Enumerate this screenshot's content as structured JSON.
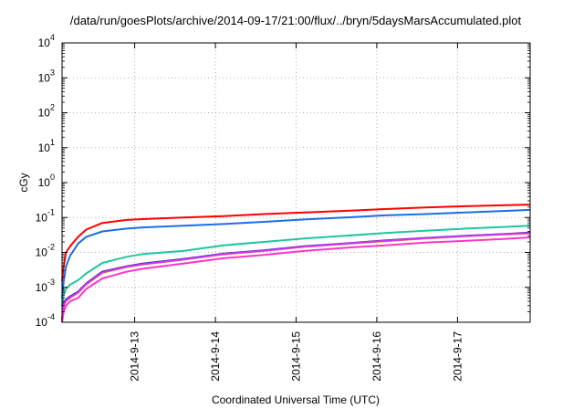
{
  "chart_data": {
    "type": "line",
    "title": "/data/run/goesPlots/archive/2014-09-17/21:00/flux/../bryn/5daysMarsAccumulated.plot",
    "xlabel": "Coordinated Universal Time (UTC)",
    "ylabel": "cGy",
    "yscale": "log",
    "ylim": [
      0.0001,
      10000
    ],
    "xlim": [
      0,
      5.8
    ],
    "grid": true,
    "x_ticks": [
      {
        "x": 0.9,
        "label": "2014-9-13"
      },
      {
        "x": 1.9,
        "label": "2014-9-14"
      },
      {
        "x": 2.9,
        "label": "2014-9-15"
      },
      {
        "x": 3.9,
        "label": "2014-9-16"
      },
      {
        "x": 4.9,
        "label": "2014-9-17"
      }
    ],
    "y_ticks": [
      {
        "v": 0.0001,
        "base": "10",
        "exp": "-4"
      },
      {
        "v": 0.001,
        "base": "10",
        "exp": "-3"
      },
      {
        "v": 0.01,
        "base": "10",
        "exp": "-2"
      },
      {
        "v": 0.1,
        "base": "10",
        "exp": "-1"
      },
      {
        "v": 1,
        "base": "10",
        "exp": "0"
      },
      {
        "v": 10,
        "base": "10",
        "exp": "1"
      },
      {
        "v": 100,
        "base": "10",
        "exp": "2"
      },
      {
        "v": 1000,
        "base": "10",
        "exp": "3"
      },
      {
        "v": 10000,
        "base": "10",
        "exp": "4"
      }
    ],
    "series": [
      {
        "color": "#ff0000",
        "x": [
          0,
          0.02,
          0.05,
          0.1,
          0.2,
          0.3,
          0.5,
          0.8,
          1.0,
          1.5,
          2.0,
          2.5,
          3.0,
          3.5,
          4.0,
          4.5,
          5.0,
          5.5,
          5.8
        ],
        "y": [
          0.0015,
          0.004,
          0.01,
          0.015,
          0.028,
          0.045,
          0.07,
          0.085,
          0.09,
          0.1,
          0.11,
          0.125,
          0.14,
          0.155,
          0.175,
          0.195,
          0.21,
          0.225,
          0.235
        ]
      },
      {
        "color": "#1a6ee8",
        "x": [
          0,
          0.02,
          0.05,
          0.1,
          0.2,
          0.3,
          0.5,
          0.8,
          1.0,
          1.5,
          2.0,
          2.5,
          3.0,
          3.5,
          4.0,
          4.5,
          5.0,
          5.5,
          5.8
        ],
        "y": [
          0.0005,
          0.0015,
          0.004,
          0.008,
          0.018,
          0.028,
          0.04,
          0.048,
          0.052,
          0.058,
          0.065,
          0.075,
          0.088,
          0.1,
          0.115,
          0.125,
          0.14,
          0.155,
          0.165
        ]
      },
      {
        "color": "#1fc5a0",
        "x": [
          0,
          0.02,
          0.05,
          0.1,
          0.2,
          0.3,
          0.5,
          0.8,
          1.0,
          1.5,
          2.0,
          2.5,
          3.0,
          3.5,
          4.0,
          4.5,
          5.0,
          5.5,
          5.8
        ],
        "y": [
          0.0003,
          0.0006,
          0.0009,
          0.0012,
          0.0016,
          0.0025,
          0.005,
          0.0075,
          0.009,
          0.011,
          0.016,
          0.02,
          0.025,
          0.03,
          0.036,
          0.042,
          0.048,
          0.054,
          0.058
        ]
      },
      {
        "color": "#ff9900",
        "x": [
          0,
          0.02,
          0.05,
          0.1,
          0.2,
          0.3,
          0.5,
          0.8,
          1.0,
          1.5,
          2.0,
          2.5,
          3.0,
          3.5,
          4.0,
          4.5,
          5.0,
          5.5,
          5.8
        ],
        "y": [
          0.0001,
          0.0003,
          0.0004,
          0.0005,
          0.0007,
          0.0012,
          0.0026,
          0.0038,
          0.0045,
          0.0062,
          0.0088,
          0.011,
          0.0145,
          0.0175,
          0.021,
          0.025,
          0.029,
          0.033,
          0.035
        ]
      },
      {
        "color": "#1a1a80",
        "x": [
          0,
          0.02,
          0.05,
          0.1,
          0.2,
          0.3,
          0.5,
          0.8,
          1.0,
          1.5,
          2.0,
          2.5,
          3.0,
          3.5,
          4.0,
          4.5,
          5.0,
          5.5,
          5.8
        ],
        "y": [
          0.00012,
          0.00035,
          0.00045,
          0.00055,
          0.00075,
          0.0013,
          0.0028,
          0.004,
          0.0048,
          0.0065,
          0.0092,
          0.0115,
          0.015,
          0.018,
          0.022,
          0.026,
          0.03,
          0.034,
          0.037
        ]
      },
      {
        "color": "#cc33ff",
        "x": [
          0,
          0.02,
          0.05,
          0.1,
          0.2,
          0.3,
          0.5,
          0.8,
          1.0,
          1.5,
          2.0,
          2.5,
          3.0,
          3.5,
          4.0,
          4.5,
          5.0,
          5.5,
          5.8
        ],
        "y": [
          0.0001,
          0.00032,
          0.00042,
          0.00052,
          0.00072,
          0.00125,
          0.0027,
          0.0039,
          0.0046,
          0.0063,
          0.009,
          0.0112,
          0.0147,
          0.0177,
          0.0215,
          0.0255,
          0.0295,
          0.0335,
          0.036
        ]
      },
      {
        "color": "#ff33cc",
        "x": [
          0,
          0.02,
          0.05,
          0.1,
          0.2,
          0.3,
          0.5,
          0.8,
          1.0,
          1.5,
          2.0,
          2.5,
          3.0,
          3.5,
          4.0,
          4.5,
          5.0,
          5.5,
          5.8
        ],
        "y": [
          0.0001,
          0.0002,
          0.0003,
          0.0004,
          0.0005,
          0.0009,
          0.0018,
          0.0028,
          0.0034,
          0.0048,
          0.0068,
          0.0085,
          0.011,
          0.0135,
          0.016,
          0.019,
          0.0215,
          0.0245,
          0.027
        ]
      }
    ]
  }
}
